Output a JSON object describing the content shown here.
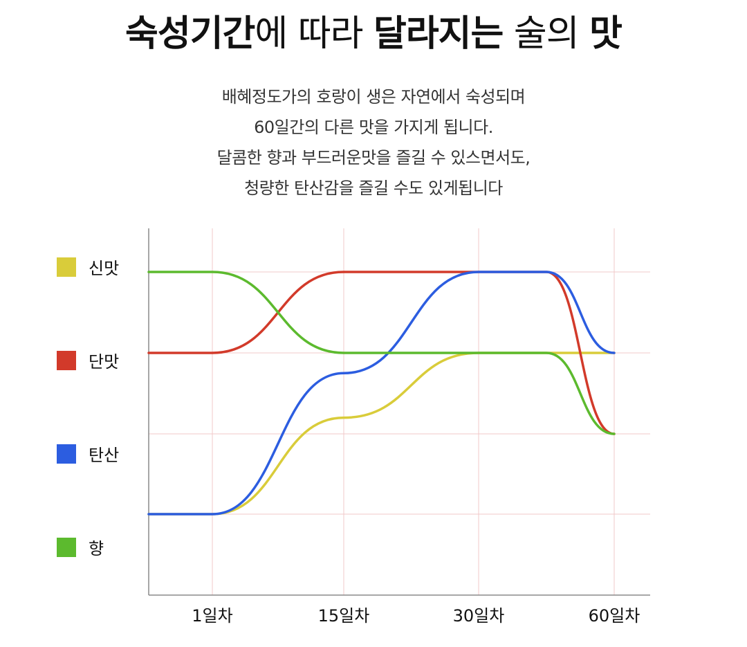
{
  "title": {
    "part1": "숙성기간",
    "part2": "에 따라 ",
    "part3": "달라지는",
    "part4": " 술의 ",
    "part5": "맛"
  },
  "description": [
    "배혜정도가의 호랑이 생은 자연에서 숙성되며",
    "60일간의 다른 맛을 가지게 됩니다.",
    "달콤한 향과 부드러운맛을 즐길 수 있스면서도,",
    "청량한 탄산감을 즐길 수도 있게됩니다"
  ],
  "chart_data": {
    "type": "line",
    "categories": [
      "1일차",
      "15일차",
      "30일차",
      "60일차"
    ],
    "y_categories": [
      "신맛",
      "단맛",
      "탄산",
      "향"
    ],
    "grid": true,
    "legend_position": "left",
    "series": [
      {
        "name": "신맛",
        "color": "#d9cc3a",
        "points": [
          [
            0,
            0
          ],
          [
            1,
            0
          ],
          [
            2,
            1.2
          ],
          [
            3,
            2
          ],
          [
            4,
            2
          ],
          [
            5,
            2
          ]
        ]
      },
      {
        "name": "단맛",
        "color": "#d23a2a",
        "points": [
          [
            0,
            2
          ],
          [
            1,
            2
          ],
          [
            2,
            3
          ],
          [
            3,
            3
          ],
          [
            4,
            3
          ],
          [
            5,
            1
          ]
        ]
      },
      {
        "name": "탄산",
        "color": "#2c5de0",
        "points": [
          [
            0,
            0
          ],
          [
            1,
            0
          ],
          [
            2,
            1.75
          ],
          [
            3,
            3
          ],
          [
            4,
            3
          ],
          [
            5,
            2
          ]
        ]
      },
      {
        "name": "향",
        "color": "#5cba2e",
        "points": [
          [
            0,
            3
          ],
          [
            1,
            3
          ],
          [
            2,
            2
          ],
          [
            3,
            2
          ],
          [
            4,
            2
          ],
          [
            5,
            1
          ]
        ]
      }
    ]
  }
}
